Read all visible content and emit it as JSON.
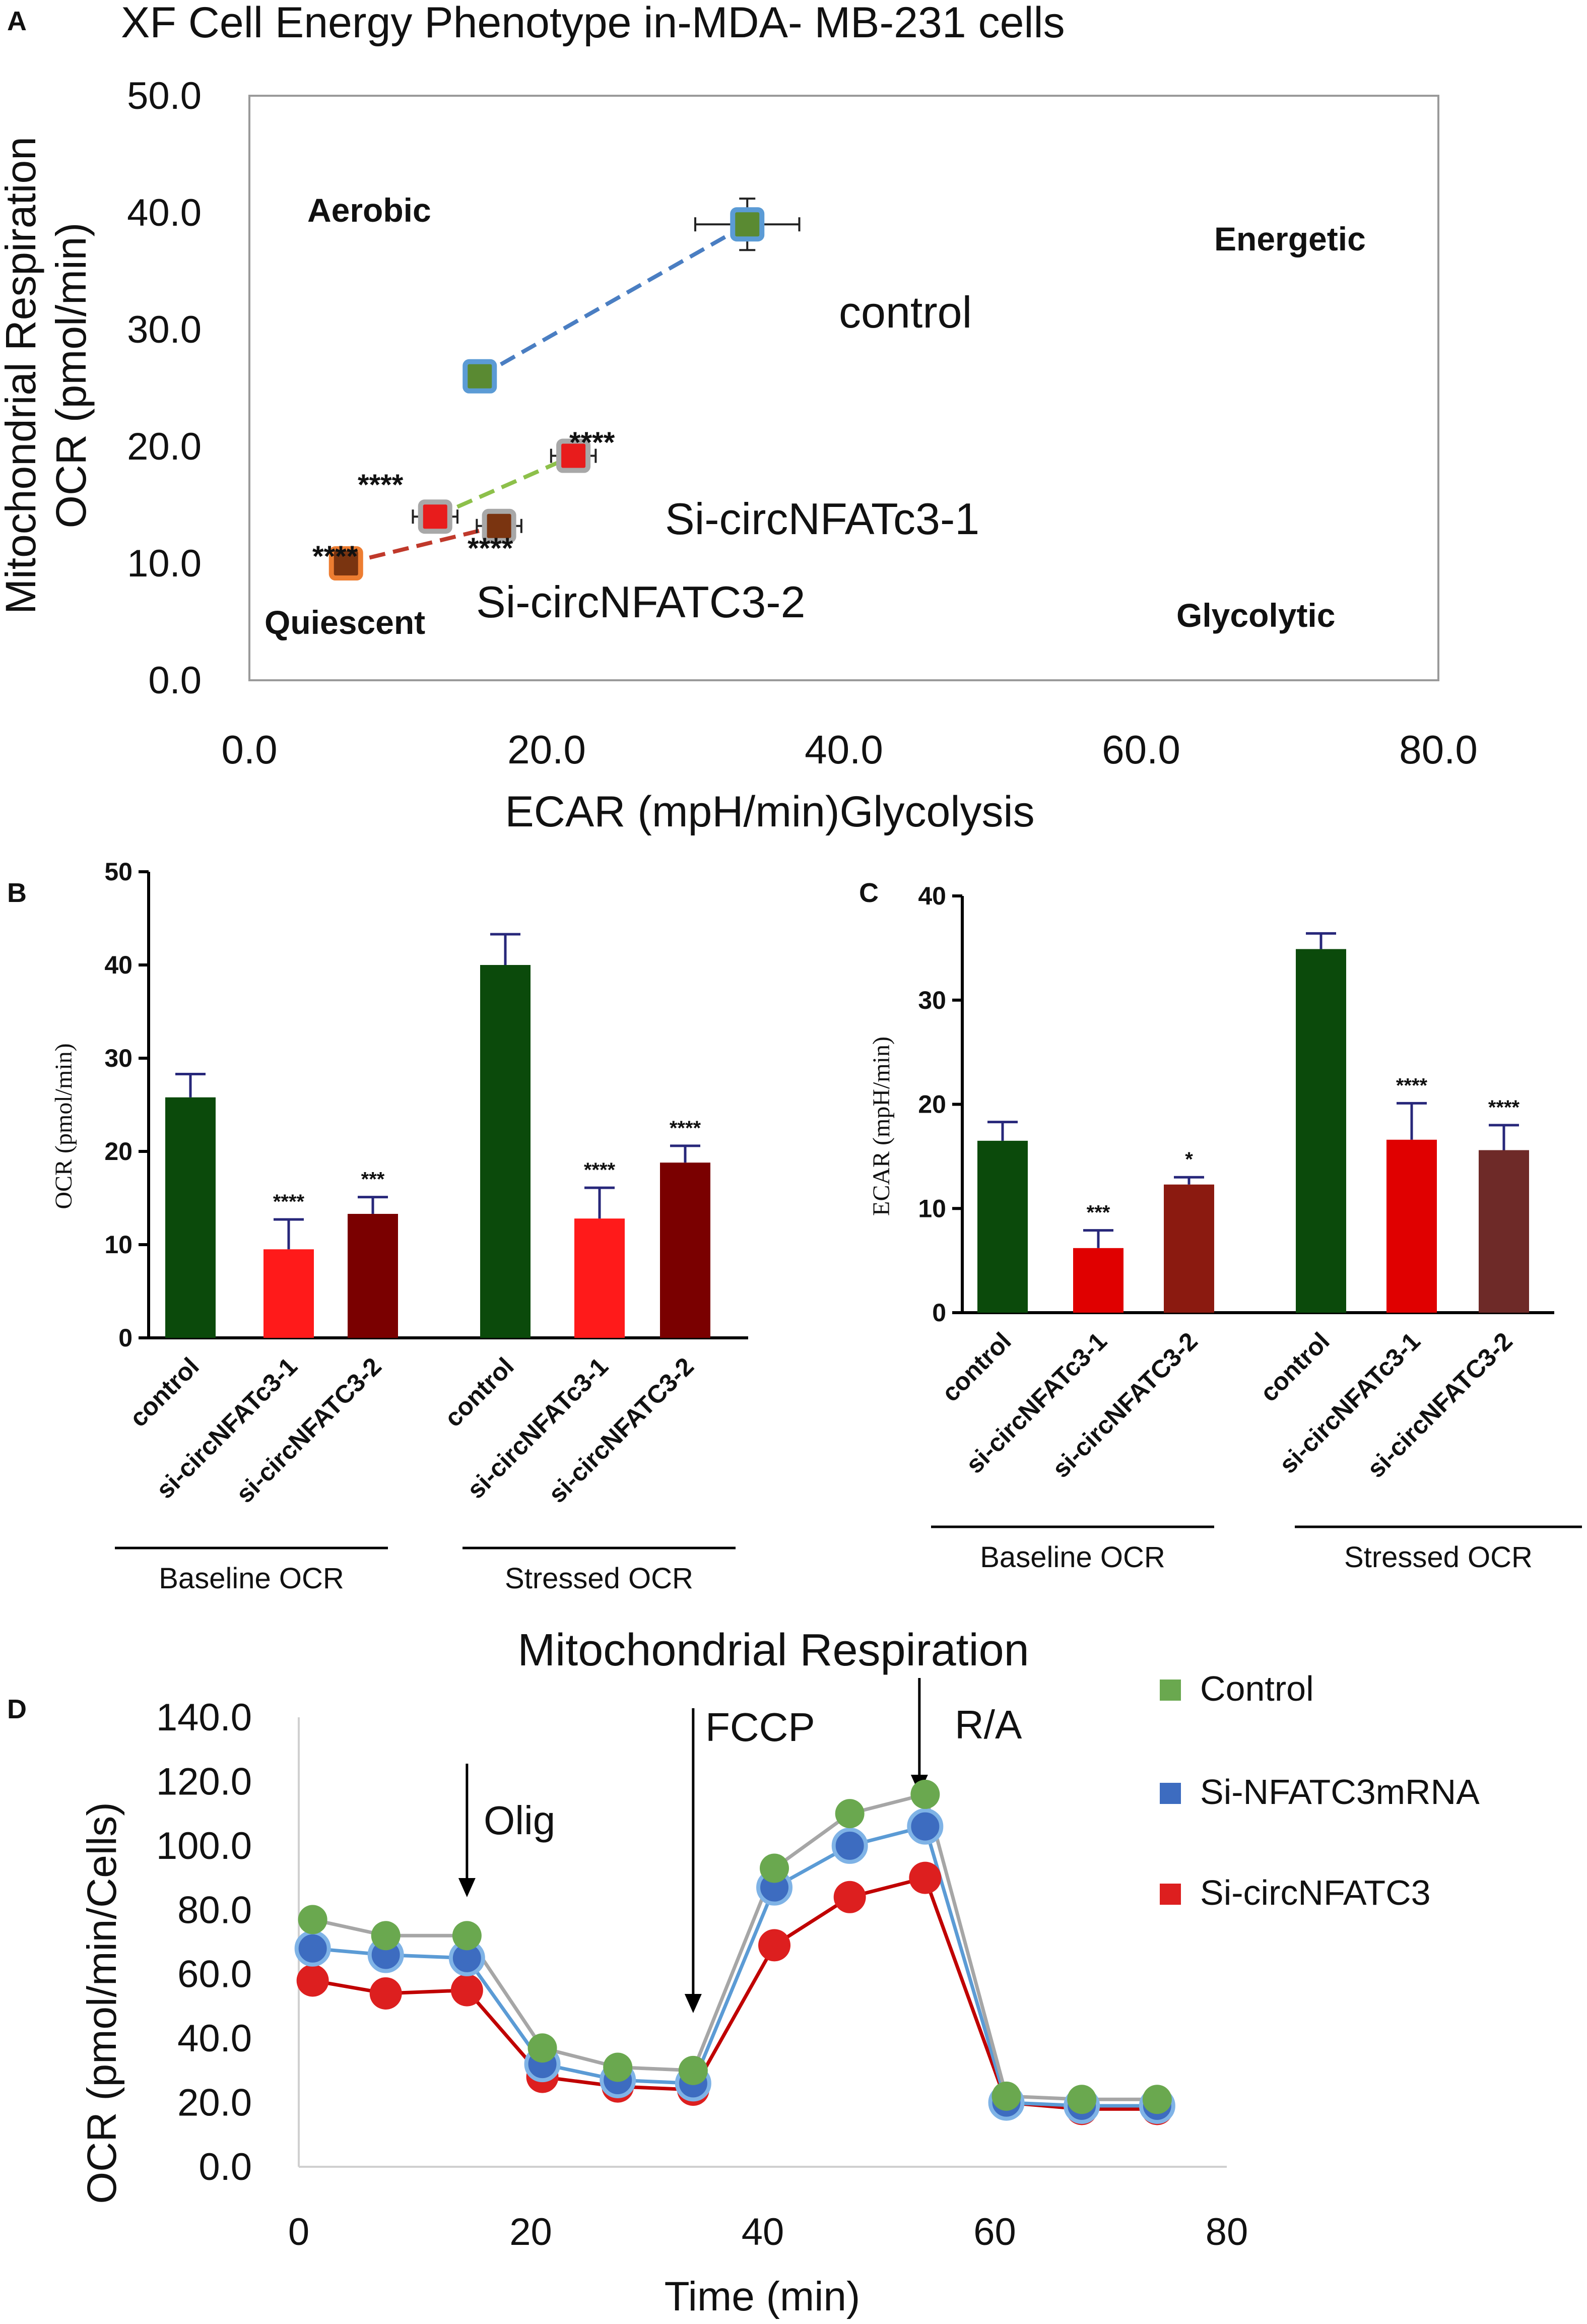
{
  "chart_data": [
    {
      "panel": "A",
      "type": "scatter",
      "title": "XF Cell Energy Phenotype in-MDA- MB-231 cells",
      "xlabel": "ECAR (mpH/min)Glycolysis",
      "ylabel": "Mitochondrial Respiration OCR (pmol/min)",
      "ylabel_lines": [
        "Mitochondrial Respiration",
        "OCR (pmol/min)"
      ],
      "xlim": [
        0,
        80
      ],
      "ylim": [
        0,
        50
      ],
      "xticks": [
        "0.0",
        "20.0",
        "40.0",
        "60.0",
        "80.0"
      ],
      "yticks": [
        "0.0",
        "10.0",
        "20.0",
        "30.0",
        "40.0",
        "50.0"
      ],
      "quadrants": {
        "top_left": "Aerobic",
        "top_right": "Energetic",
        "bottom_left": "Quiescent",
        "bottom_right": "Glycolytic"
      },
      "series": [
        {
          "name": "control",
          "label": "control",
          "line_color": "#4a7ec2",
          "baseline": {
            "x": 15.5,
            "y": 26.0,
            "fill": "#5a8a32",
            "border": "#5b9bd5"
          },
          "stressed": {
            "x": 33.5,
            "y": 39.0,
            "xerr": 3.5,
            "yerr": 2.2,
            "fill": "#5a8a32",
            "border": "#5b9bd5"
          },
          "stars": []
        },
        {
          "name": "Si-circNFATc3-1",
          "label": "Si-circNFATc3-1",
          "line_color": "#8dc04a",
          "baseline": {
            "x": 12.5,
            "y": 14.0,
            "xerr": 1.5,
            "fill": "#e81c1c",
            "border": "#a8a8a8"
          },
          "stressed": {
            "x": 21.8,
            "y": 19.2,
            "xerr": 1.5,
            "fill": "#e81c1c",
            "border": "#a8a8a8"
          },
          "stars": [
            {
              "text": "****",
              "at": "baseline"
            },
            {
              "text": "****",
              "at": "stressed"
            }
          ]
        },
        {
          "name": "Si-circNFATC3-2",
          "label": "Si-circNFATC3-2",
          "line_color": "#c0392b",
          "baseline": {
            "x": 6.5,
            "y": 10.0,
            "fill": "#7a3410",
            "border": "#ed7d31"
          },
          "stressed": {
            "x": 16.8,
            "y": 13.2,
            "xerr": 1.5,
            "fill": "#7a3410",
            "border": "#a8a8a8"
          },
          "stars": [
            {
              "text": "****",
              "at": "baseline"
            },
            {
              "text": "****",
              "at": "stressed"
            }
          ]
        }
      ]
    },
    {
      "panel": "B",
      "type": "bar",
      "ylabel": "OCR (pmol/min)",
      "ylim": [
        0,
        50
      ],
      "yticks": [
        "0",
        "10",
        "20",
        "30",
        "40",
        "50"
      ],
      "groups": [
        {
          "label": "Baseline OCR",
          "bars": [
            {
              "category": "control",
              "value": 25.8,
              "err": 2.5,
              "color": "#0b4a0b",
              "stars": ""
            },
            {
              "category": "si-circNFATc3-1",
              "value": 9.5,
              "err": 3.2,
              "color": "#ff1a1a",
              "stars": "****"
            },
            {
              "category": "si-circNFATC3-2",
              "value": 13.3,
              "err": 1.8,
              "color": "#7a0000",
              "stars": "***"
            }
          ]
        },
        {
          "label": "Stressed OCR",
          "bars": [
            {
              "category": "control",
              "value": 40.0,
              "err": 3.3,
              "color": "#0b4a0b",
              "stars": ""
            },
            {
              "category": "si-circNFATc3-1",
              "value": 12.8,
              "err": 3.3,
              "color": "#ff1a1a",
              "stars": "****"
            },
            {
              "category": "si-circNFATC3-2",
              "value": 18.8,
              "err": 1.8,
              "color": "#7a0000",
              "stars": "****"
            }
          ]
        }
      ]
    },
    {
      "panel": "C",
      "type": "bar",
      "ylabel": "ECAR (mpH/min)",
      "ylim": [
        0,
        40
      ],
      "yticks": [
        "0",
        "10",
        "20",
        "30",
        "40"
      ],
      "groups": [
        {
          "label": "Baseline OCR",
          "bars": [
            {
              "category": "control",
              "value": 16.5,
              "err": 1.8,
              "color": "#0b4a0b",
              "stars": ""
            },
            {
              "category": "si-circNFATc3-1",
              "value": 6.2,
              "err": 1.7,
              "color": "#e00000",
              "stars": "***"
            },
            {
              "category": "si-circNFATC3-2",
              "value": 12.3,
              "err": 0.7,
              "color": "#8b1a10",
              "stars": "*"
            }
          ]
        },
        {
          "label": "Stressed OCR",
          "bars": [
            {
              "category": "control",
              "value": 34.9,
              "err": 1.5,
              "color": "#0b4a0b",
              "stars": ""
            },
            {
              "category": "si-circNFATc3-1",
              "value": 16.6,
              "err": 3.5,
              "color": "#e00000",
              "stars": "****"
            },
            {
              "category": "si-circNFATC3-2",
              "value": 15.6,
              "err": 2.4,
              "color": "#6e2a28",
              "stars": "****"
            }
          ]
        }
      ]
    },
    {
      "panel": "D",
      "type": "line",
      "title": "Mitochondrial Respiration",
      "xlabel": "Time (min)",
      "ylabel": "OCR (pmol/min/Cells)",
      "xlim": [
        0,
        80
      ],
      "ylim": [
        0,
        140
      ],
      "xticks": [
        "0",
        "20",
        "40",
        "60",
        "80"
      ],
      "yticks": [
        "0.0",
        "20.0",
        "40.0",
        "60.0",
        "80.0",
        "100.0",
        "120.0",
        "140.0"
      ],
      "x": [
        1.2,
        7.5,
        14.5,
        21.0,
        27.5,
        34.0,
        41.0,
        47.5,
        54.0,
        61.0,
        67.5,
        74.0
      ],
      "injections": [
        {
          "label": "Olig",
          "x": 14.5
        },
        {
          "label": "FCCP",
          "x": 34.0
        },
        {
          "label": "R/A",
          "x": 53.5
        }
      ],
      "series": [
        {
          "name": "Control",
          "color": "#6aa84f",
          "line": "#a6a6a6",
          "values": [
            77,
            72,
            72,
            37,
            31,
            30,
            93,
            110,
            116,
            22,
            21,
            21
          ]
        },
        {
          "name": "Si-NFATC3mRNA",
          "color": "#3d6cc0",
          "line": "#5b9bd5",
          "values": [
            68,
            66,
            65,
            32,
            27,
            26,
            87,
            100,
            106,
            20,
            19,
            19
          ]
        },
        {
          "name": "Si-circNFATC3",
          "color": "#dd1f1f",
          "line": "#c00000",
          "values": [
            58,
            54,
            55,
            28,
            25,
            24,
            69,
            84,
            90,
            20,
            18,
            18
          ]
        }
      ]
    }
  ],
  "panel_letters": [
    "A",
    "B",
    "C",
    "D"
  ]
}
